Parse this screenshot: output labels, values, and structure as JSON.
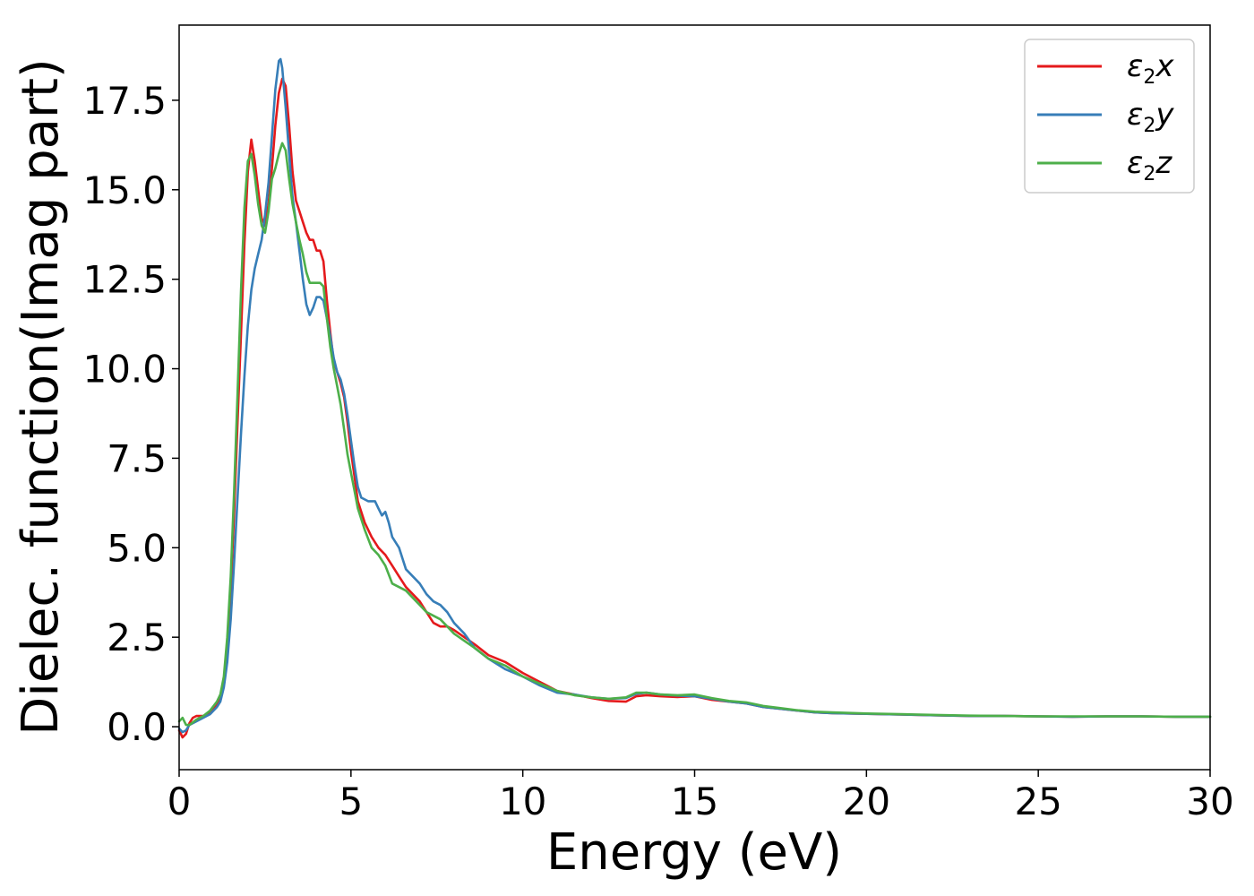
{
  "chart_data": {
    "type": "line",
    "title": "",
    "xlabel": "Energy (eV)",
    "ylabel": "Dielec. function(Imag part)",
    "xlim": [
      0,
      30
    ],
    "ylim": [
      -1.2,
      19.6
    ],
    "xticks": [
      {
        "value": 0,
        "label": "0"
      },
      {
        "value": 5,
        "label": "5"
      },
      {
        "value": 10,
        "label": "10"
      },
      {
        "value": 15,
        "label": "15"
      },
      {
        "value": 20,
        "label": "20"
      },
      {
        "value": 25,
        "label": "25"
      },
      {
        "value": 30,
        "label": "30"
      }
    ],
    "yticks": [
      {
        "value": 0,
        "label": "0.0"
      },
      {
        "value": 2.5,
        "label": "2.5"
      },
      {
        "value": 5,
        "label": "5.0"
      },
      {
        "value": 7.5,
        "label": "7.5"
      },
      {
        "value": 10,
        "label": "10.0"
      },
      {
        "value": 12.5,
        "label": "12.5"
      },
      {
        "value": 15,
        "label": "15.0"
      },
      {
        "value": 17.5,
        "label": "17.5"
      }
    ],
    "grid": false,
    "legend_position": "top-right",
    "series": [
      {
        "name": "ε₂x",
        "legend_base": "ε",
        "legend_sub": "2",
        "legend_var": "x",
        "color": "#e41a1c",
        "points": [
          [
            0,
            -0.1
          ],
          [
            0.1,
            -0.3
          ],
          [
            0.2,
            -0.2
          ],
          [
            0.3,
            0.1
          ],
          [
            0.4,
            0.25
          ],
          [
            0.5,
            0.3
          ],
          [
            0.7,
            0.3
          ],
          [
            0.9,
            0.4
          ],
          [
            1.1,
            0.6
          ],
          [
            1.2,
            0.8
          ],
          [
            1.3,
            1.3
          ],
          [
            1.4,
            2.2
          ],
          [
            1.5,
            3.8
          ],
          [
            1.6,
            6.0
          ],
          [
            1.7,
            8.5
          ],
          [
            1.8,
            11.0
          ],
          [
            1.9,
            13.5
          ],
          [
            2.0,
            15.5
          ],
          [
            2.1,
            16.4
          ],
          [
            2.2,
            15.8
          ],
          [
            2.3,
            15.0
          ],
          [
            2.4,
            14.2
          ],
          [
            2.5,
            14.0
          ],
          [
            2.6,
            14.6
          ],
          [
            2.7,
            15.6
          ],
          [
            2.8,
            16.8
          ],
          [
            2.9,
            17.7
          ],
          [
            3.0,
            18.1
          ],
          [
            3.1,
            17.9
          ],
          [
            3.2,
            16.8
          ],
          [
            3.3,
            15.5
          ],
          [
            3.4,
            14.7
          ],
          [
            3.5,
            14.4
          ],
          [
            3.6,
            14.1
          ],
          [
            3.7,
            13.8
          ],
          [
            3.8,
            13.6
          ],
          [
            3.9,
            13.6
          ],
          [
            4.0,
            13.3
          ],
          [
            4.1,
            13.3
          ],
          [
            4.2,
            13.0
          ],
          [
            4.3,
            11.9
          ],
          [
            4.4,
            11.0
          ],
          [
            4.5,
            10.2
          ],
          [
            4.6,
            9.9
          ],
          [
            4.7,
            9.6
          ],
          [
            4.8,
            9.2
          ],
          [
            4.9,
            8.5
          ],
          [
            5.0,
            7.7
          ],
          [
            5.1,
            7.0
          ],
          [
            5.2,
            6.3
          ],
          [
            5.4,
            5.7
          ],
          [
            5.6,
            5.3
          ],
          [
            5.8,
            5.0
          ],
          [
            6.0,
            4.8
          ],
          [
            6.2,
            4.5
          ],
          [
            6.4,
            4.2
          ],
          [
            6.6,
            3.9
          ],
          [
            6.8,
            3.7
          ],
          [
            7.0,
            3.5
          ],
          [
            7.2,
            3.2
          ],
          [
            7.4,
            2.9
          ],
          [
            7.6,
            2.8
          ],
          [
            7.8,
            2.8
          ],
          [
            8.0,
            2.7
          ],
          [
            8.3,
            2.5
          ],
          [
            8.6,
            2.3
          ],
          [
            9.0,
            2.0
          ],
          [
            9.5,
            1.8
          ],
          [
            10.0,
            1.5
          ],
          [
            10.5,
            1.25
          ],
          [
            11.0,
            1.0
          ],
          [
            11.5,
            0.9
          ],
          [
            12.0,
            0.8
          ],
          [
            12.5,
            0.72
          ],
          [
            13.0,
            0.7
          ],
          [
            13.3,
            0.85
          ],
          [
            13.6,
            0.88
          ],
          [
            14.0,
            0.85
          ],
          [
            14.5,
            0.83
          ],
          [
            15.0,
            0.85
          ],
          [
            15.5,
            0.75
          ],
          [
            16.0,
            0.7
          ],
          [
            16.5,
            0.65
          ],
          [
            17.0,
            0.55
          ],
          [
            17.5,
            0.5
          ],
          [
            18.0,
            0.45
          ],
          [
            18.5,
            0.4
          ],
          [
            19.0,
            0.38
          ],
          [
            20.0,
            0.36
          ],
          [
            21.0,
            0.34
          ],
          [
            22.0,
            0.32
          ],
          [
            23.0,
            0.3
          ],
          [
            24.0,
            0.3
          ],
          [
            25.0,
            0.29
          ],
          [
            26.0,
            0.28
          ],
          [
            27.0,
            0.29
          ],
          [
            28.0,
            0.29
          ],
          [
            29.0,
            0.28
          ],
          [
            30.0,
            0.28
          ]
        ]
      },
      {
        "name": "ε₂y",
        "legend_base": "ε",
        "legend_sub": "2",
        "legend_var": "y",
        "color": "#377eb8",
        "points": [
          [
            0,
            -0.05
          ],
          [
            0.1,
            -0.15
          ],
          [
            0.2,
            -0.1
          ],
          [
            0.3,
            0.05
          ],
          [
            0.5,
            0.15
          ],
          [
            0.7,
            0.25
          ],
          [
            0.9,
            0.35
          ],
          [
            1.1,
            0.55
          ],
          [
            1.2,
            0.7
          ],
          [
            1.3,
            1.1
          ],
          [
            1.4,
            1.8
          ],
          [
            1.5,
            3.0
          ],
          [
            1.6,
            4.6
          ],
          [
            1.7,
            6.4
          ],
          [
            1.8,
            8.2
          ],
          [
            1.9,
            9.8
          ],
          [
            2.0,
            11.2
          ],
          [
            2.1,
            12.2
          ],
          [
            2.2,
            12.8
          ],
          [
            2.3,
            13.2
          ],
          [
            2.4,
            13.6
          ],
          [
            2.5,
            14.3
          ],
          [
            2.6,
            15.2
          ],
          [
            2.7,
            16.5
          ],
          [
            2.8,
            17.8
          ],
          [
            2.9,
            18.6
          ],
          [
            2.95,
            18.65
          ],
          [
            3.0,
            18.4
          ],
          [
            3.1,
            17.3
          ],
          [
            3.2,
            16.0
          ],
          [
            3.3,
            14.8
          ],
          [
            3.4,
            14.1
          ],
          [
            3.5,
            13.3
          ],
          [
            3.6,
            12.5
          ],
          [
            3.7,
            11.8
          ],
          [
            3.8,
            11.5
          ],
          [
            3.9,
            11.7
          ],
          [
            4.0,
            12.0
          ],
          [
            4.1,
            12.0
          ],
          [
            4.2,
            11.9
          ],
          [
            4.3,
            11.4
          ],
          [
            4.4,
            10.9
          ],
          [
            4.5,
            10.3
          ],
          [
            4.6,
            9.9
          ],
          [
            4.7,
            9.7
          ],
          [
            4.8,
            9.3
          ],
          [
            4.9,
            8.7
          ],
          [
            5.0,
            8.0
          ],
          [
            5.1,
            7.3
          ],
          [
            5.2,
            6.7
          ],
          [
            5.3,
            6.4
          ],
          [
            5.5,
            6.3
          ],
          [
            5.7,
            6.3
          ],
          [
            5.8,
            6.1
          ],
          [
            5.9,
            5.9
          ],
          [
            6.0,
            6.0
          ],
          [
            6.1,
            5.7
          ],
          [
            6.2,
            5.3
          ],
          [
            6.4,
            5.0
          ],
          [
            6.6,
            4.4
          ],
          [
            6.8,
            4.2
          ],
          [
            7.0,
            4.0
          ],
          [
            7.2,
            3.7
          ],
          [
            7.4,
            3.5
          ],
          [
            7.6,
            3.4
          ],
          [
            7.8,
            3.2
          ],
          [
            8.0,
            2.9
          ],
          [
            8.3,
            2.6
          ],
          [
            8.6,
            2.2
          ],
          [
            9.0,
            1.9
          ],
          [
            9.5,
            1.6
          ],
          [
            10.0,
            1.4
          ],
          [
            10.5,
            1.15
          ],
          [
            11.0,
            0.95
          ],
          [
            11.5,
            0.9
          ],
          [
            12.0,
            0.82
          ],
          [
            12.5,
            0.78
          ],
          [
            13.0,
            0.8
          ],
          [
            13.3,
            0.92
          ],
          [
            13.6,
            0.95
          ],
          [
            14.0,
            0.9
          ],
          [
            14.5,
            0.87
          ],
          [
            15.0,
            0.85
          ],
          [
            15.5,
            0.78
          ],
          [
            16.0,
            0.7
          ],
          [
            16.5,
            0.65
          ],
          [
            17.0,
            0.55
          ],
          [
            17.5,
            0.5
          ],
          [
            18.0,
            0.45
          ],
          [
            18.5,
            0.4
          ],
          [
            19.0,
            0.38
          ],
          [
            20.0,
            0.36
          ],
          [
            21.0,
            0.34
          ],
          [
            22.0,
            0.32
          ],
          [
            23.0,
            0.3
          ],
          [
            24.0,
            0.3
          ],
          [
            25.0,
            0.29
          ],
          [
            26.0,
            0.28
          ],
          [
            27.0,
            0.29
          ],
          [
            28.0,
            0.29
          ],
          [
            29.0,
            0.28
          ],
          [
            30.0,
            0.28
          ]
        ]
      },
      {
        "name": "ε₂z",
        "legend_base": "ε",
        "legend_sub": "2",
        "legend_var": "z",
        "color": "#4daf4a",
        "points": [
          [
            0,
            0.15
          ],
          [
            0.1,
            0.25
          ],
          [
            0.2,
            0.05
          ],
          [
            0.3,
            0.05
          ],
          [
            0.5,
            0.2
          ],
          [
            0.7,
            0.3
          ],
          [
            0.9,
            0.45
          ],
          [
            1.1,
            0.7
          ],
          [
            1.2,
            0.9
          ],
          [
            1.3,
            1.4
          ],
          [
            1.4,
            2.5
          ],
          [
            1.5,
            4.2
          ],
          [
            1.6,
            6.6
          ],
          [
            1.7,
            9.3
          ],
          [
            1.8,
            12.2
          ],
          [
            1.9,
            14.5
          ],
          [
            2.0,
            15.8
          ],
          [
            2.1,
            16.0
          ],
          [
            2.2,
            15.4
          ],
          [
            2.3,
            14.6
          ],
          [
            2.4,
            14.0
          ],
          [
            2.5,
            13.8
          ],
          [
            2.6,
            14.4
          ],
          [
            2.7,
            15.3
          ],
          [
            2.8,
            15.6
          ],
          [
            2.9,
            16.0
          ],
          [
            3.0,
            16.3
          ],
          [
            3.1,
            16.1
          ],
          [
            3.2,
            15.3
          ],
          [
            3.3,
            14.6
          ],
          [
            3.4,
            14.1
          ],
          [
            3.5,
            13.6
          ],
          [
            3.6,
            13.2
          ],
          [
            3.7,
            12.7
          ],
          [
            3.8,
            12.4
          ],
          [
            3.9,
            12.4
          ],
          [
            4.0,
            12.4
          ],
          [
            4.1,
            12.4
          ],
          [
            4.2,
            12.3
          ],
          [
            4.3,
            11.4
          ],
          [
            4.4,
            10.6
          ],
          [
            4.5,
            10.0
          ],
          [
            4.6,
            9.5
          ],
          [
            4.7,
            9.0
          ],
          [
            4.8,
            8.3
          ],
          [
            4.9,
            7.6
          ],
          [
            5.0,
            7.1
          ],
          [
            5.1,
            6.6
          ],
          [
            5.2,
            6.1
          ],
          [
            5.4,
            5.5
          ],
          [
            5.6,
            5.0
          ],
          [
            5.8,
            4.8
          ],
          [
            6.0,
            4.5
          ],
          [
            6.2,
            4.0
          ],
          [
            6.4,
            3.9
          ],
          [
            6.6,
            3.8
          ],
          [
            6.8,
            3.6
          ],
          [
            7.0,
            3.4
          ],
          [
            7.2,
            3.2
          ],
          [
            7.4,
            3.1
          ],
          [
            7.6,
            3.0
          ],
          [
            7.8,
            2.8
          ],
          [
            8.0,
            2.6
          ],
          [
            8.3,
            2.4
          ],
          [
            8.6,
            2.2
          ],
          [
            9.0,
            1.9
          ],
          [
            9.5,
            1.7
          ],
          [
            10.0,
            1.4
          ],
          [
            10.5,
            1.2
          ],
          [
            11.0,
            1.0
          ],
          [
            11.5,
            0.88
          ],
          [
            12.0,
            0.82
          ],
          [
            12.5,
            0.78
          ],
          [
            13.0,
            0.82
          ],
          [
            13.3,
            0.95
          ],
          [
            13.6,
            0.95
          ],
          [
            14.0,
            0.9
          ],
          [
            14.5,
            0.88
          ],
          [
            15.0,
            0.9
          ],
          [
            15.5,
            0.8
          ],
          [
            16.0,
            0.72
          ],
          [
            16.5,
            0.68
          ],
          [
            17.0,
            0.58
          ],
          [
            17.5,
            0.52
          ],
          [
            18.0,
            0.46
          ],
          [
            18.5,
            0.42
          ],
          [
            19.0,
            0.4
          ],
          [
            20.0,
            0.37
          ],
          [
            21.0,
            0.35
          ],
          [
            22.0,
            0.33
          ],
          [
            23.0,
            0.31
          ],
          [
            24.0,
            0.3
          ],
          [
            25.0,
            0.29
          ],
          [
            26.0,
            0.29
          ],
          [
            27.0,
            0.29
          ],
          [
            28.0,
            0.29
          ],
          [
            29.0,
            0.28
          ],
          [
            30.0,
            0.28
          ]
        ]
      }
    ]
  }
}
